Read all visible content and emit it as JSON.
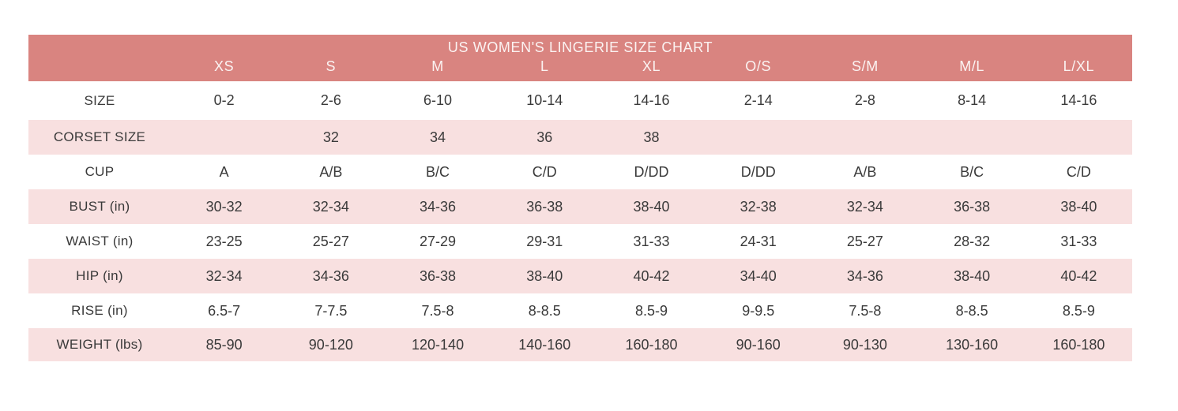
{
  "title": "US WOMEN'S LINGERIE SIZE CHART",
  "colors": {
    "header_bg": "#d98480",
    "row_alt_bg": "#f8e0e0",
    "row_bg": "#ffffff",
    "header_text": "#fbf3f2",
    "body_text": "#3a3a3a",
    "page_bg": "#ffffff"
  },
  "chart_data": {
    "type": "table",
    "title": "US WOMEN'S LINGERIE SIZE CHART",
    "columns": [
      "",
      "XS",
      "S",
      "M",
      "L",
      "XL",
      "O/S",
      "S/M",
      "M/L",
      "L/XL"
    ],
    "rows": [
      {
        "label": "SIZE",
        "values": [
          "0-2",
          "2-6",
          "6-10",
          "10-14",
          "14-16",
          "2-14",
          "2-8",
          "8-14",
          "14-16"
        ]
      },
      {
        "label": "CORSET SIZE",
        "values": [
          "",
          "32",
          "34",
          "36",
          "38",
          "",
          "",
          "",
          ""
        ]
      },
      {
        "label": "CUP",
        "values": [
          "A",
          "A/B",
          "B/C",
          "C/D",
          "D/DD",
          "D/DD",
          "A/B",
          "B/C",
          "C/D"
        ]
      },
      {
        "label": "BUST (in)",
        "values": [
          "30-32",
          "32-34",
          "34-36",
          "36-38",
          "38-40",
          "32-38",
          "32-34",
          "36-38",
          "38-40"
        ]
      },
      {
        "label": "WAIST (in)",
        "values": [
          "23-25",
          "25-27",
          "27-29",
          "29-31",
          "31-33",
          "24-31",
          "25-27",
          "28-32",
          "31-33"
        ]
      },
      {
        "label": "HIP (in)",
        "values": [
          "32-34",
          "34-36",
          "36-38",
          "38-40",
          "40-42",
          "34-40",
          "34-36",
          "38-40",
          "40-42"
        ]
      },
      {
        "label": "RISE (in)",
        "values": [
          "6.5-7",
          "7-7.5",
          "7.5-8",
          "8-8.5",
          "8.5-9",
          "9-9.5",
          "7.5-8",
          "8-8.5",
          "8.5-9"
        ]
      },
      {
        "label": "WEIGHT (lbs)",
        "values": [
          "85-90",
          "90-120",
          "120-140",
          "140-160",
          "160-180",
          "90-160",
          "90-130",
          "130-160",
          "160-180"
        ]
      }
    ]
  }
}
